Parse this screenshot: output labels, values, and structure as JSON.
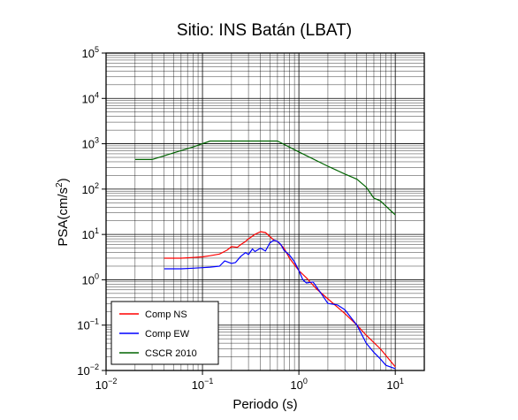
{
  "chart_data": {
    "type": "line",
    "title": "Sitio: INS Batán (LBAT)",
    "xlabel": "Periodo (s)",
    "ylabel": "PSA(cm/s²)",
    "ylabel_base": "PSA(cm/s",
    "ylabel_sup": "2",
    "ylabel_end": ")",
    "x_scale": "log",
    "y_scale": "log",
    "xlim": [
      0.01,
      20
    ],
    "ylim": [
      0.01,
      100000
    ],
    "grid": true,
    "legend_position": "bottom-left",
    "x_ticks": [
      {
        "value": 0.01,
        "base": "10",
        "exp": "−2"
      },
      {
        "value": 0.1,
        "base": "10",
        "exp": "−1"
      },
      {
        "value": 1,
        "base": "10",
        "exp": "0"
      },
      {
        "value": 10,
        "base": "10",
        "exp": "1"
      }
    ],
    "y_ticks": [
      {
        "value": 0.01,
        "base": "10",
        "exp": "−2"
      },
      {
        "value": 0.1,
        "base": "10",
        "exp": "−1"
      },
      {
        "value": 1,
        "base": "10",
        "exp": "0"
      },
      {
        "value": 10,
        "base": "10",
        "exp": "1"
      },
      {
        "value": 100,
        "base": "10",
        "exp": "2"
      },
      {
        "value": 1000,
        "base": "10",
        "exp": "3"
      },
      {
        "value": 10000,
        "base": "10",
        "exp": "4"
      },
      {
        "value": 100000,
        "base": "10",
        "exp": "5"
      }
    ],
    "series": [
      {
        "name": "Comp NS",
        "color": "#ff0000",
        "x": [
          0.04,
          0.06,
          0.08,
          0.1,
          0.12,
          0.15,
          0.18,
          0.2,
          0.23,
          0.25,
          0.28,
          0.3,
          0.35,
          0.4,
          0.45,
          0.5,
          0.55,
          0.6,
          0.7,
          0.8,
          1.0,
          1.2,
          1.5,
          2.0,
          3.0,
          4.0,
          5.0,
          7.0,
          10.0
        ],
        "y": [
          3.0,
          3.0,
          3.1,
          3.2,
          3.4,
          3.7,
          4.5,
          5.4,
          5.2,
          6.0,
          7.0,
          8.0,
          10.0,
          11.5,
          11.0,
          9.0,
          7.5,
          7.0,
          5.0,
          3.0,
          1.6,
          1.1,
          0.65,
          0.38,
          0.18,
          0.1,
          0.06,
          0.03,
          0.012
        ]
      },
      {
        "name": "Comp EW",
        "color": "#0000ff",
        "x": [
          0.04,
          0.06,
          0.08,
          0.1,
          0.12,
          0.15,
          0.17,
          0.2,
          0.22,
          0.25,
          0.28,
          0.3,
          0.33,
          0.35,
          0.4,
          0.45,
          0.5,
          0.55,
          0.6,
          0.65,
          0.7,
          0.8,
          0.9,
          1.0,
          1.1,
          1.2,
          1.4,
          1.6,
          1.8,
          2.0,
          2.5,
          3.0,
          4.0,
          5.0,
          6.0,
          7.0,
          8.0,
          10.0
        ],
        "y": [
          1.75,
          1.75,
          1.8,
          1.85,
          1.9,
          2.0,
          2.6,
          2.3,
          2.4,
          3.3,
          4.0,
          3.6,
          4.8,
          4.2,
          5.0,
          4.3,
          6.5,
          7.5,
          7.0,
          6.0,
          4.5,
          3.5,
          2.5,
          1.6,
          1.0,
          0.85,
          0.9,
          0.6,
          0.42,
          0.3,
          0.28,
          0.22,
          0.1,
          0.04,
          0.025,
          0.018,
          0.013,
          0.011
        ]
      },
      {
        "name": "CSCR 2010",
        "color": "#006400",
        "x": [
          0.02,
          0.03,
          0.05,
          0.08,
          0.12,
          0.2,
          0.4,
          0.6,
          1.0,
          2.0,
          3.0,
          4.0,
          5.0,
          6.0,
          7.0,
          8.0,
          10.0
        ],
        "y": [
          450,
          450,
          630,
          850,
          1150,
          1150,
          1150,
          1150,
          660,
          320,
          215,
          165,
          110,
          63,
          55,
          42,
          27
        ]
      }
    ]
  }
}
